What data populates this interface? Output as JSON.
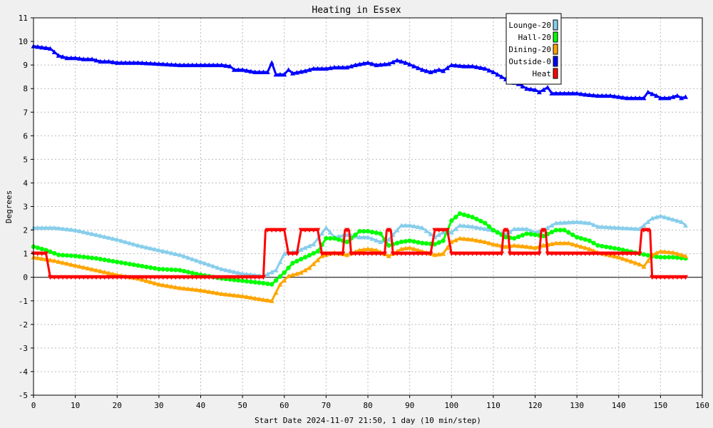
{
  "chart_data": {
    "type": "line",
    "title": "Heating in Essex",
    "xlabel": "Start Date 2024-11-07 21:50, 1 day (10 min/step)",
    "ylabel": "Degrees",
    "xlim": [
      0,
      160
    ],
    "ylim": [
      -5,
      11
    ],
    "x_ticks": [
      0,
      10,
      20,
      30,
      40,
      50,
      60,
      70,
      80,
      90,
      100,
      110,
      120,
      130,
      140,
      150,
      160
    ],
    "y_ticks": [
      -5,
      -4,
      -3,
      -2,
      -1,
      0,
      1,
      2,
      3,
      4,
      5,
      6,
      7,
      8,
      9,
      10,
      11
    ],
    "grid": true,
    "legend_position": "top-right",
    "series": [
      {
        "name": "Lounge-20",
        "color": "#87ceeb",
        "marker": "triangle",
        "points": [
          [
            0,
            2.1
          ],
          [
            5,
            2.1
          ],
          [
            10,
            2.0
          ],
          [
            15,
            1.8
          ],
          [
            20,
            1.6
          ],
          [
            25,
            1.35
          ],
          [
            30,
            1.15
          ],
          [
            35,
            0.95
          ],
          [
            40,
            0.65
          ],
          [
            45,
            0.35
          ],
          [
            50,
            0.15
          ],
          [
            55,
            0.05
          ],
          [
            58,
            0.3
          ],
          [
            60,
            1.0
          ],
          [
            63,
            1.1
          ],
          [
            67,
            1.4
          ],
          [
            70,
            2.1
          ],
          [
            72,
            1.7
          ],
          [
            75,
            1.8
          ],
          [
            78,
            1.7
          ],
          [
            80,
            1.7
          ],
          [
            83,
            1.5
          ],
          [
            85,
            1.6
          ],
          [
            88,
            2.2
          ],
          [
            90,
            2.2
          ],
          [
            93,
            2.1
          ],
          [
            96,
            1.7
          ],
          [
            98,
            1.9
          ],
          [
            100,
            1.9
          ],
          [
            102,
            2.2
          ],
          [
            105,
            2.15
          ],
          [
            108,
            2.05
          ],
          [
            110,
            2.0
          ],
          [
            113,
            1.8
          ],
          [
            115,
            2.05
          ],
          [
            118,
            2.05
          ],
          [
            120,
            1.9
          ],
          [
            122,
            2.0
          ],
          [
            125,
            2.3
          ],
          [
            130,
            2.35
          ],
          [
            133,
            2.3
          ],
          [
            135,
            2.15
          ],
          [
            140,
            2.1
          ],
          [
            145,
            2.05
          ],
          [
            148,
            2.5
          ],
          [
            150,
            2.6
          ],
          [
            153,
            2.45
          ],
          [
            155,
            2.35
          ],
          [
            156,
            2.2
          ]
        ]
      },
      {
        "name": "Hall-20",
        "color": "#00ff00",
        "marker": "circle",
        "points": [
          [
            0,
            1.3
          ],
          [
            3,
            1.15
          ],
          [
            6,
            0.95
          ],
          [
            10,
            0.9
          ],
          [
            15,
            0.8
          ],
          [
            20,
            0.65
          ],
          [
            25,
            0.5
          ],
          [
            30,
            0.35
          ],
          [
            35,
            0.3
          ],
          [
            40,
            0.1
          ],
          [
            45,
            -0.05
          ],
          [
            50,
            -0.15
          ],
          [
            55,
            -0.25
          ],
          [
            57,
            -0.3
          ],
          [
            60,
            0.2
          ],
          [
            62,
            0.6
          ],
          [
            65,
            0.85
          ],
          [
            68,
            1.1
          ],
          [
            70,
            1.65
          ],
          [
            72,
            1.65
          ],
          [
            75,
            1.5
          ],
          [
            78,
            1.95
          ],
          [
            80,
            1.95
          ],
          [
            83,
            1.85
          ],
          [
            85,
            1.35
          ],
          [
            88,
            1.5
          ],
          [
            90,
            1.55
          ],
          [
            93,
            1.45
          ],
          [
            96,
            1.4
          ],
          [
            98,
            1.55
          ],
          [
            100,
            2.4
          ],
          [
            102,
            2.7
          ],
          [
            105,
            2.55
          ],
          [
            108,
            2.3
          ],
          [
            110,
            2.0
          ],
          [
            113,
            1.7
          ],
          [
            115,
            1.65
          ],
          [
            118,
            1.85
          ],
          [
            120,
            1.8
          ],
          [
            122,
            1.75
          ],
          [
            125,
            2.0
          ],
          [
            127,
            2.0
          ],
          [
            130,
            1.7
          ],
          [
            133,
            1.55
          ],
          [
            135,
            1.35
          ],
          [
            140,
            1.2
          ],
          [
            145,
            1.0
          ],
          [
            148,
            0.9
          ],
          [
            150,
            0.85
          ],
          [
            153,
            0.85
          ],
          [
            156,
            0.8
          ]
        ]
      },
      {
        "name": "Dining-20",
        "color": "#ffa500",
        "marker": "triangle",
        "points": [
          [
            0,
            0.85
          ],
          [
            5,
            0.7
          ],
          [
            10,
            0.5
          ],
          [
            15,
            0.3
          ],
          [
            20,
            0.1
          ],
          [
            25,
            -0.05
          ],
          [
            30,
            -0.3
          ],
          [
            35,
            -0.45
          ],
          [
            40,
            -0.55
          ],
          [
            45,
            -0.7
          ],
          [
            50,
            -0.8
          ],
          [
            55,
            -0.95
          ],
          [
            57,
            -1.0
          ],
          [
            59,
            -0.3
          ],
          [
            61,
            0.05
          ],
          [
            64,
            0.2
          ],
          [
            66,
            0.4
          ],
          [
            69,
            0.9
          ],
          [
            72,
            1.05
          ],
          [
            75,
            0.95
          ],
          [
            78,
            1.15
          ],
          [
            80,
            1.2
          ],
          [
            82,
            1.15
          ],
          [
            85,
            0.9
          ],
          [
            88,
            1.2
          ],
          [
            90,
            1.25
          ],
          [
            93,
            1.1
          ],
          [
            96,
            0.95
          ],
          [
            98,
            1.0
          ],
          [
            100,
            1.5
          ],
          [
            102,
            1.65
          ],
          [
            105,
            1.6
          ],
          [
            108,
            1.5
          ],
          [
            110,
            1.4
          ],
          [
            113,
            1.3
          ],
          [
            115,
            1.35
          ],
          [
            118,
            1.3
          ],
          [
            120,
            1.25
          ],
          [
            122,
            1.35
          ],
          [
            125,
            1.45
          ],
          [
            128,
            1.45
          ],
          [
            130,
            1.35
          ],
          [
            133,
            1.2
          ],
          [
            135,
            1.05
          ],
          [
            140,
            0.85
          ],
          [
            145,
            0.55
          ],
          [
            146,
            0.45
          ],
          [
            148,
            0.95
          ],
          [
            150,
            1.1
          ],
          [
            153,
            1.05
          ],
          [
            156,
            0.9
          ]
        ]
      },
      {
        "name": "Outside-0",
        "color": "#0000ff",
        "marker": "triangle",
        "points": [
          [
            0,
            9.8
          ],
          [
            2,
            9.75
          ],
          [
            4,
            9.7
          ],
          [
            6,
            9.4
          ],
          [
            8,
            9.3
          ],
          [
            10,
            9.3
          ],
          [
            12,
            9.25
          ],
          [
            14,
            9.25
          ],
          [
            16,
            9.15
          ],
          [
            18,
            9.15
          ],
          [
            20,
            9.1
          ],
          [
            25,
            9.1
          ],
          [
            30,
            9.05
          ],
          [
            35,
            9.0
          ],
          [
            40,
            9.0
          ],
          [
            45,
            9.0
          ],
          [
            47,
            8.95
          ],
          [
            48,
            8.8
          ],
          [
            50,
            8.8
          ],
          [
            53,
            8.7
          ],
          [
            56,
            8.7
          ],
          [
            57,
            9.1
          ],
          [
            58,
            8.6
          ],
          [
            60,
            8.6
          ],
          [
            61,
            8.8
          ],
          [
            62,
            8.65
          ],
          [
            65,
            8.75
          ],
          [
            67,
            8.85
          ],
          [
            70,
            8.85
          ],
          [
            72,
            8.9
          ],
          [
            75,
            8.9
          ],
          [
            77,
            9.0
          ],
          [
            80,
            9.1
          ],
          [
            82,
            9.0
          ],
          [
            85,
            9.05
          ],
          [
            87,
            9.2
          ],
          [
            89,
            9.1
          ],
          [
            91,
            8.95
          ],
          [
            93,
            8.8
          ],
          [
            95,
            8.7
          ],
          [
            97,
            8.8
          ],
          [
            98,
            8.75
          ],
          [
            100,
            9.0
          ],
          [
            103,
            8.95
          ],
          [
            105,
            8.95
          ],
          [
            108,
            8.85
          ],
          [
            110,
            8.7
          ],
          [
            112,
            8.5
          ],
          [
            114,
            8.3
          ],
          [
            116,
            8.2
          ],
          [
            118,
            8.0
          ],
          [
            120,
            7.95
          ],
          [
            121,
            7.85
          ],
          [
            123,
            8.05
          ],
          [
            124,
            7.8
          ],
          [
            125,
            7.8
          ],
          [
            128,
            7.8
          ],
          [
            130,
            7.8
          ],
          [
            132,
            7.75
          ],
          [
            135,
            7.7
          ],
          [
            138,
            7.7
          ],
          [
            140,
            7.65
          ],
          [
            142,
            7.6
          ],
          [
            145,
            7.6
          ],
          [
            146,
            7.6
          ],
          [
            147,
            7.85
          ],
          [
            149,
            7.7
          ],
          [
            150,
            7.6
          ],
          [
            152,
            7.6
          ],
          [
            154,
            7.7
          ],
          [
            155,
            7.6
          ],
          [
            156,
            7.65
          ]
        ]
      },
      {
        "name": "Heat",
        "color": "#ff0000",
        "marker": "triangle-down",
        "points": [
          [
            0,
            1
          ],
          [
            3,
            1
          ],
          [
            4,
            0
          ],
          [
            55,
            0
          ],
          [
            55.5,
            2
          ],
          [
            60,
            2
          ],
          [
            61,
            1
          ],
          [
            63,
            1
          ],
          [
            64,
            2
          ],
          [
            68,
            2
          ],
          [
            69,
            1
          ],
          [
            74,
            1
          ],
          [
            74.5,
            2
          ],
          [
            75.5,
            2
          ],
          [
            76,
            1
          ],
          [
            84,
            1
          ],
          [
            84.5,
            2
          ],
          [
            85.5,
            2
          ],
          [
            86,
            1
          ],
          [
            95,
            1
          ],
          [
            96,
            2
          ],
          [
            99,
            2
          ],
          [
            100,
            1
          ],
          [
            112,
            1
          ],
          [
            112.5,
            2
          ],
          [
            113.5,
            2
          ],
          [
            114,
            1
          ],
          [
            121,
            1
          ],
          [
            121.5,
            2
          ],
          [
            122.5,
            2
          ],
          [
            123,
            1
          ],
          [
            145,
            1
          ],
          [
            145.5,
            2
          ],
          [
            147.5,
            2
          ],
          [
            148,
            0
          ],
          [
            156,
            0
          ]
        ]
      }
    ]
  }
}
